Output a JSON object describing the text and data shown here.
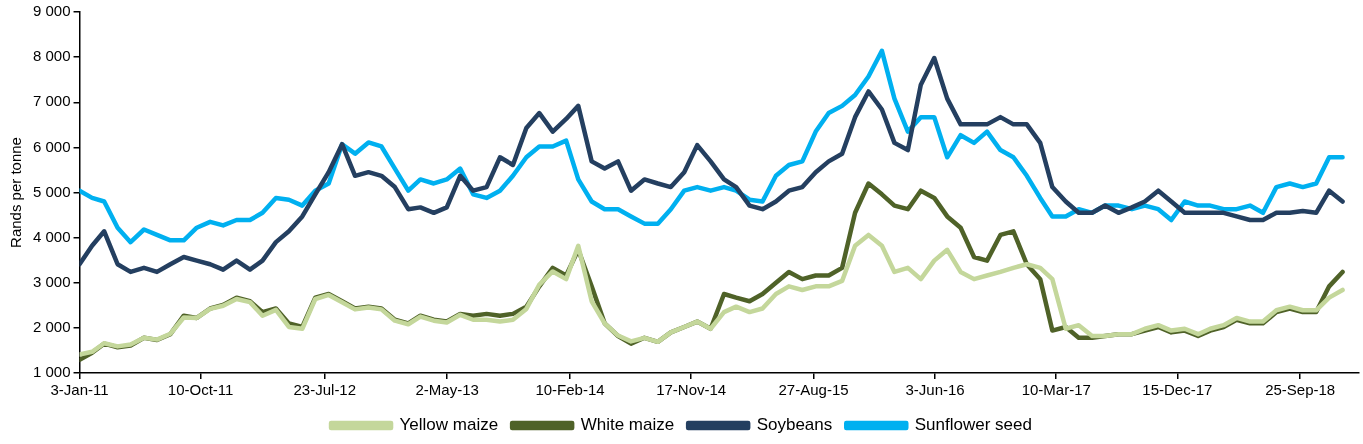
{
  "chart_data": {
    "type": "line",
    "ylabel": "Rands per tonne",
    "legend": "bottom",
    "grid": false,
    "marker": "none",
    "line_style": "solid",
    "x": [
      "2011-01-03",
      "2011-02",
      "2011-03",
      "2011-04",
      "2011-05",
      "2011-06",
      "2011-07",
      "2011-08",
      "2011-09",
      "2011-10",
      "2011-11",
      "2011-12",
      "2012-01",
      "2012-02",
      "2012-03",
      "2012-04",
      "2012-05",
      "2012-06",
      "2012-07",
      "2012-08",
      "2012-09",
      "2012-10",
      "2012-11",
      "2012-12",
      "2013-01",
      "2013-02",
      "2013-03",
      "2013-04",
      "2013-05",
      "2013-06",
      "2013-07",
      "2013-08",
      "2013-09",
      "2013-10",
      "2013-11",
      "2013-12",
      "2014-01",
      "2014-02",
      "2014-03",
      "2014-04",
      "2014-05",
      "2014-06",
      "2014-07",
      "2014-08",
      "2014-09",
      "2014-10",
      "2014-11",
      "2014-12",
      "2015-01",
      "2015-02",
      "2015-03",
      "2015-04",
      "2015-05",
      "2015-06",
      "2015-07",
      "2015-08",
      "2015-09",
      "2015-10",
      "2015-11",
      "2015-12",
      "2016-01",
      "2016-02",
      "2016-03",
      "2016-04",
      "2016-05",
      "2016-06",
      "2016-07",
      "2016-08",
      "2016-09",
      "2016-10",
      "2016-11",
      "2016-12",
      "2017-01",
      "2017-02",
      "2017-03",
      "2017-04",
      "2017-05",
      "2017-06",
      "2017-07",
      "2017-08",
      "2017-09",
      "2017-10",
      "2017-11",
      "2017-12",
      "2018-01",
      "2018-02",
      "2018-03",
      "2018-04",
      "2018-05",
      "2018-06",
      "2018-07",
      "2018-08",
      "2018-09",
      "2018-10",
      "2018-11",
      "2018-12",
      "2019-01"
    ],
    "xlim": [
      "2011-01-03",
      "2019-02-08"
    ],
    "xticks": [
      {
        "value": "2011-01-03",
        "label": "3-Jan-11"
      },
      {
        "value": "2011-10-10",
        "label": "10-Oct-11"
      },
      {
        "value": "2012-07-23",
        "label": "23-Jul-12"
      },
      {
        "value": "2013-05-02",
        "label": "2-May-13"
      },
      {
        "value": "2014-02-10",
        "label": "10-Feb-14"
      },
      {
        "value": "2014-11-17",
        "label": "17-Nov-14"
      },
      {
        "value": "2015-08-27",
        "label": "27-Aug-15"
      },
      {
        "value": "2016-06-03",
        "label": "3-Jun-16"
      },
      {
        "value": "2017-03-10",
        "label": "10-Mar-17"
      },
      {
        "value": "2017-12-15",
        "label": "15-Dec-17"
      },
      {
        "value": "2018-09-25",
        "label": "25-Sep-18"
      }
    ],
    "ylim": [
      1000,
      9000
    ],
    "yticks": [
      {
        "value": 1000,
        "label": "1 000"
      },
      {
        "value": 2000,
        "label": "2 000"
      },
      {
        "value": 3000,
        "label": "3 000"
      },
      {
        "value": 4000,
        "label": "4 000"
      },
      {
        "value": 5000,
        "label": "5 000"
      },
      {
        "value": 6000,
        "label": "6 000"
      },
      {
        "value": 7000,
        "label": "7 000"
      },
      {
        "value": 8000,
        "label": "8 000"
      },
      {
        "value": 9000,
        "label": "9 000"
      }
    ],
    "series": [
      {
        "name": "Yellow maize",
        "color": "#c4d79b",
        "values": [
          1410,
          1470,
          1660,
          1590,
          1630,
          1780,
          1740,
          1870,
          2230,
          2220,
          2420,
          2490,
          2640,
          2570,
          2270,
          2400,
          2020,
          1980,
          2640,
          2730,
          2570,
          2410,
          2450,
          2410,
          2160,
          2080,
          2250,
          2160,
          2120,
          2290,
          2180,
          2180,
          2140,
          2180,
          2420,
          2960,
          3250,
          3080,
          3820,
          2590,
          2100,
          1830,
          1700,
          1780,
          1690,
          1900,
          2020,
          2140,
          1980,
          2350,
          2470,
          2350,
          2430,
          2750,
          2920,
          2840,
          2920,
          2920,
          3040,
          3820,
          4060,
          3820,
          3240,
          3330,
          3080,
          3490,
          3730,
          3240,
          3080,
          3160,
          3240,
          3330,
          3410,
          3330,
          3080,
          1980,
          2060,
          1820,
          1820,
          1860,
          1860,
          1980,
          2060,
          1940,
          1980,
          1860,
          1980,
          2060,
          2220,
          2140,
          2140,
          2390,
          2470,
          2390,
          2390,
          2670,
          2840
        ]
      },
      {
        "name": "White maize",
        "color": "#4f6228",
        "values": [
          1290,
          1450,
          1650,
          1570,
          1610,
          1780,
          1730,
          1860,
          2270,
          2220,
          2430,
          2510,
          2670,
          2590,
          2350,
          2430,
          2100,
          2020,
          2670,
          2750,
          2590,
          2430,
          2470,
          2430,
          2180,
          2100,
          2270,
          2180,
          2140,
          2310,
          2270,
          2310,
          2270,
          2310,
          2470,
          2920,
          3330,
          3160,
          3730,
          2920,
          2100,
          1820,
          1650,
          1780,
          1690,
          1900,
          2020,
          2140,
          1980,
          2750,
          2670,
          2590,
          2750,
          3000,
          3240,
          3080,
          3160,
          3160,
          3330,
          4550,
          5200,
          4960,
          4710,
          4630,
          5040,
          4880,
          4470,
          4220,
          3570,
          3490,
          4060,
          4140,
          3410,
          3080,
          1940,
          2020,
          1780,
          1780,
          1820,
          1860,
          1860,
          1940,
          2020,
          1900,
          1940,
          1820,
          1940,
          2020,
          2180,
          2100,
          2100,
          2350,
          2430,
          2350,
          2350,
          2920,
          3240
        ]
      },
      {
        "name": "Soybeans",
        "color": "#243f60",
        "values": [
          3410,
          3820,
          4140,
          3410,
          3240,
          3330,
          3240,
          3410,
          3570,
          3490,
          3410,
          3290,
          3490,
          3290,
          3490,
          3900,
          4140,
          4470,
          4960,
          5450,
          6070,
          5370,
          5450,
          5370,
          5120,
          4630,
          4670,
          4550,
          4670,
          5370,
          5040,
          5120,
          5780,
          5610,
          6430,
          6760,
          6350,
          6630,
          6920,
          5690,
          5530,
          5690,
          5040,
          5290,
          5200,
          5120,
          5450,
          6050,
          5690,
          5290,
          5120,
          4710,
          4630,
          4800,
          5040,
          5120,
          5450,
          5690,
          5860,
          6670,
          7240,
          6840,
          6100,
          5940,
          7390,
          7980,
          7080,
          6510,
          6510,
          6510,
          6670,
          6510,
          6510,
          6100,
          5120,
          4800,
          4550,
          4550,
          4710,
          4550,
          4670,
          4800,
          5040,
          4800,
          4550,
          4550,
          4550,
          4550,
          4470,
          4390,
          4390,
          4550,
          4550,
          4590,
          4550,
          5040,
          4800
        ]
      },
      {
        "name": "Sunflower seed",
        "color": "#00b0f0",
        "values": [
          5040,
          4880,
          4800,
          4220,
          3900,
          4180,
          4060,
          3940,
          3940,
          4220,
          4350,
          4270,
          4390,
          4390,
          4550,
          4880,
          4840,
          4710,
          5040,
          5200,
          6070,
          5860,
          6110,
          6020,
          5530,
          5040,
          5290,
          5200,
          5290,
          5530,
          4960,
          4880,
          5040,
          5370,
          5780,
          6020,
          6020,
          6150,
          5290,
          4800,
          4630,
          4630,
          4470,
          4310,
          4310,
          4630,
          5040,
          5120,
          5040,
          5120,
          5040,
          4840,
          4800,
          5370,
          5610,
          5690,
          6350,
          6760,
          6920,
          7160,
          7570,
          8140,
          7080,
          6350,
          6670,
          6670,
          5780,
          6270,
          6100,
          6350,
          5940,
          5780,
          5370,
          4880,
          4470,
          4470,
          4630,
          4550,
          4710,
          4710,
          4630,
          4710,
          4630,
          4390,
          4800,
          4710,
          4710,
          4630,
          4630,
          4710,
          4550,
          5120,
          5200,
          5120,
          5200,
          5780,
          5780
        ]
      }
    ]
  }
}
